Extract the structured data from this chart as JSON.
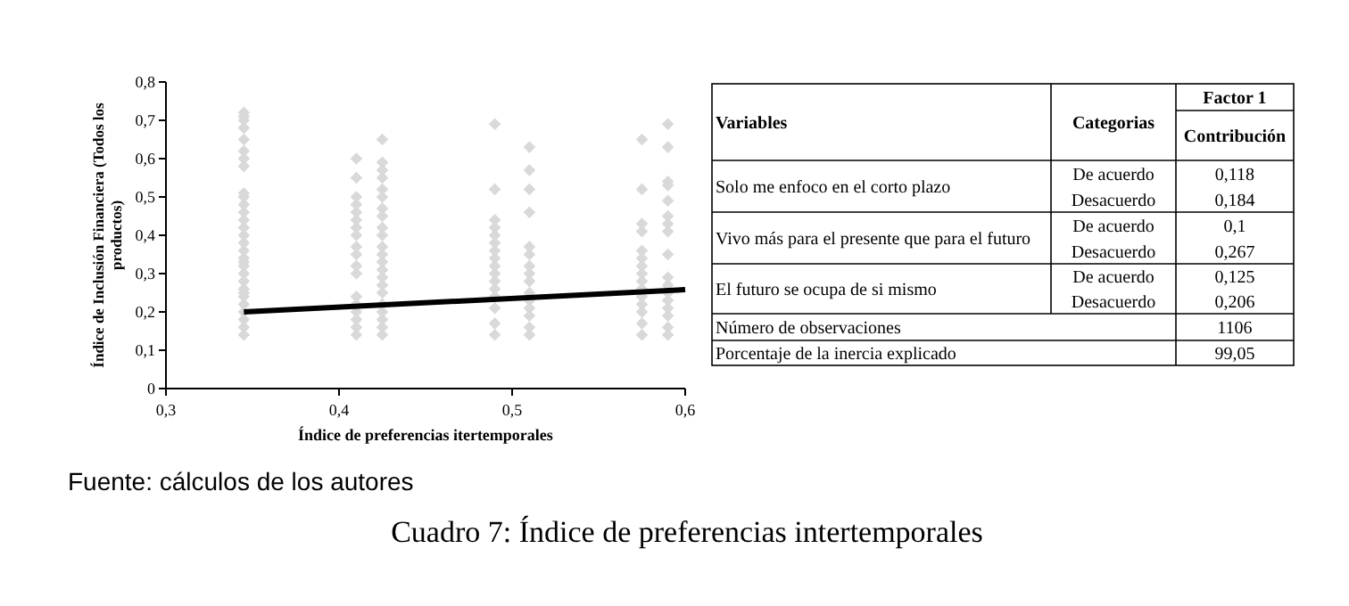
{
  "chart_data": [
    {
      "type": "scatter",
      "xlabel": "Índice de preferencias itertemporales",
      "ylabel": "Índice de Inclusión Financiera (Todos los productos)",
      "xlim": [
        0.3,
        0.6
      ],
      "xticks": [
        {
          "value": 0.3,
          "label": "0,3"
        },
        {
          "value": 0.4,
          "label": "0,4"
        },
        {
          "value": 0.5,
          "label": "0,5"
        },
        {
          "value": 0.6,
          "label": "0,6"
        }
      ],
      "ylim": [
        0,
        0.8
      ],
      "yticks": [
        0,
        {
          "value": 0.1,
          "label": "0,1"
        },
        {
          "value": 0.2,
          "label": "0,2"
        },
        {
          "value": 0.3,
          "label": "0,3"
        },
        {
          "value": 0.4,
          "label": "0,4"
        },
        {
          "value": 0.5,
          "label": "0,5"
        },
        {
          "value": 0.6,
          "label": "0,6"
        },
        {
          "value": 0.7,
          "label": "0,7"
        },
        {
          "value": 0.8,
          "label": "0,8"
        }
      ],
      "grid": false,
      "series": [
        {
          "type": "scatter",
          "color": "#d9d9d9",
          "marker": "diamond",
          "x": [
            0.345,
            0.345,
            0.345,
            0.345,
            0.345,
            0.345,
            0.345,
            0.345,
            0.345,
            0.345,
            0.345,
            0.345,
            0.345,
            0.345,
            0.345,
            0.345,
            0.345,
            0.345,
            0.345,
            0.345,
            0.345,
            0.345,
            0.345,
            0.345,
            0.345,
            0.345,
            0.345,
            0.345,
            0.345,
            0.345,
            0.41,
            0.41,
            0.41,
            0.41,
            0.41,
            0.41,
            0.41,
            0.41,
            0.41,
            0.41,
            0.41,
            0.41,
            0.41,
            0.41,
            0.41,
            0.41,
            0.41,
            0.41,
            0.425,
            0.425,
            0.425,
            0.425,
            0.425,
            0.425,
            0.425,
            0.425,
            0.425,
            0.425,
            0.425,
            0.425,
            0.425,
            0.425,
            0.425,
            0.425,
            0.425,
            0.425,
            0.425,
            0.425,
            0.425,
            0.425,
            0.49,
            0.49,
            0.49,
            0.49,
            0.49,
            0.49,
            0.49,
            0.49,
            0.49,
            0.49,
            0.49,
            0.49,
            0.49,
            0.49,
            0.49,
            0.49,
            0.51,
            0.51,
            0.51,
            0.51,
            0.51,
            0.51,
            0.51,
            0.51,
            0.51,
            0.51,
            0.51,
            0.51,
            0.51,
            0.51,
            0.51,
            0.575,
            0.575,
            0.575,
            0.575,
            0.575,
            0.575,
            0.575,
            0.575,
            0.575,
            0.575,
            0.575,
            0.575,
            0.575,
            0.575,
            0.575,
            0.59,
            0.59,
            0.59,
            0.59,
            0.59,
            0.59,
            0.59,
            0.59,
            0.59,
            0.59,
            0.59,
            0.59,
            0.59,
            0.59,
            0.59,
            0.59,
            0.59
          ],
          "values": [
            0.14,
            0.16,
            0.18,
            0.2,
            0.22,
            0.24,
            0.26,
            0.28,
            0.3,
            0.32,
            0.34,
            0.36,
            0.38,
            0.4,
            0.42,
            0.44,
            0.46,
            0.48,
            0.5,
            0.51,
            0.58,
            0.6,
            0.62,
            0.65,
            0.68,
            0.7,
            0.71,
            0.72,
            0.25,
            0.33,
            0.14,
            0.16,
            0.18,
            0.2,
            0.22,
            0.24,
            0.3,
            0.32,
            0.35,
            0.37,
            0.4,
            0.42,
            0.44,
            0.46,
            0.48,
            0.5,
            0.55,
            0.6,
            0.14,
            0.16,
            0.18,
            0.2,
            0.22,
            0.25,
            0.27,
            0.29,
            0.31,
            0.33,
            0.35,
            0.37,
            0.4,
            0.42,
            0.45,
            0.47,
            0.5,
            0.52,
            0.55,
            0.57,
            0.59,
            0.65,
            0.14,
            0.17,
            0.21,
            0.24,
            0.26,
            0.28,
            0.3,
            0.32,
            0.34,
            0.36,
            0.38,
            0.4,
            0.42,
            0.44,
            0.52,
            0.69,
            0.14,
            0.16,
            0.19,
            0.21,
            0.23,
            0.25,
            0.28,
            0.3,
            0.32,
            0.35,
            0.37,
            0.46,
            0.52,
            0.57,
            0.63,
            0.14,
            0.17,
            0.2,
            0.22,
            0.24,
            0.26,
            0.28,
            0.3,
            0.32,
            0.34,
            0.36,
            0.41,
            0.43,
            0.52,
            0.65,
            0.14,
            0.16,
            0.19,
            0.21,
            0.23,
            0.25,
            0.27,
            0.29,
            0.35,
            0.41,
            0.43,
            0.45,
            0.49,
            0.53,
            0.54,
            0.63,
            0.69
          ]
        },
        {
          "type": "line",
          "color": "#000000",
          "marker": "none",
          "x": [
            0.345,
            0.6
          ],
          "values": [
            0.2,
            0.258
          ]
        }
      ],
      "annotations": [
        "Fuente: cálculos de los autores",
        "Cuadro 7: Índice de preferencias intertemporales"
      ]
    },
    {
      "type": "other",
      "annotations": [
        "Variables",
        "Categorias",
        "Factor 1",
        "Contribución",
        "Solo me enfoco en el corto plazo",
        "De acuerdo",
        "Desacuerdo",
        "0,118",
        "0,184",
        "Vivo más para el presente que para el futuro",
        "De acuerdo",
        "Desacuerdo",
        "0,1",
        "0,267",
        "El futuro se ocupa de si mismo",
        "De acuerdo",
        "Desacuerdo",
        "0,125",
        "0,206",
        "Número de observaciones",
        "1106",
        "Porcentaje de la inercia explicado",
        "99,05"
      ]
    }
  ]
}
